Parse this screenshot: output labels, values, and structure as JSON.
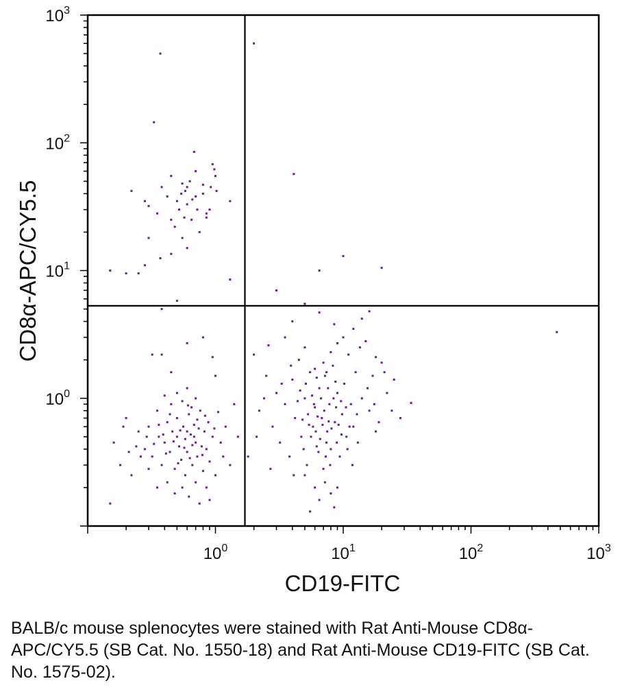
{
  "chart_data": {
    "type": "scatter",
    "scale": "log",
    "xlabel": "CD19-FITC",
    "ylabel": "CD8α-APC/CY5.5",
    "xlim": [
      0.1,
      1000
    ],
    "ylim": [
      0.1,
      1000
    ],
    "x_ticks": [
      {
        "base": "10",
        "exp": "0",
        "value": 1
      },
      {
        "base": "10",
        "exp": "1",
        "value": 10
      },
      {
        "base": "10",
        "exp": "2",
        "value": 100
      },
      {
        "base": "10",
        "exp": "3",
        "value": 1000
      }
    ],
    "y_ticks": [
      {
        "base": "10",
        "exp": "0",
        "value": 1
      },
      {
        "base": "10",
        "exp": "1",
        "value": 10
      },
      {
        "base": "10",
        "exp": "2",
        "value": 100
      },
      {
        "base": "10",
        "exp": "3",
        "value": 1000
      }
    ],
    "gate": {
      "x": 1.7,
      "y": 5.3
    },
    "point_color": "#6a1b8e",
    "points": [
      [
        0.37,
        500
      ],
      [
        0.33,
        145
      ],
      [
        0.22,
        42
      ],
      [
        0.45,
        55
      ],
      [
        0.55,
        48
      ],
      [
        0.6,
        45
      ],
      [
        0.7,
        60
      ],
      [
        0.68,
        85
      ],
      [
        0.95,
        68
      ],
      [
        0.98,
        62
      ],
      [
        1.0,
        55
      ],
      [
        1.3,
        35
      ],
      [
        0.9,
        30
      ],
      [
        0.8,
        40
      ],
      [
        0.5,
        35
      ],
      [
        0.42,
        38
      ],
      [
        0.3,
        32
      ],
      [
        0.28,
        35
      ],
      [
        0.35,
        28
      ],
      [
        0.48,
        22
      ],
      [
        0.55,
        18
      ],
      [
        0.65,
        25
      ],
      [
        0.75,
        20
      ],
      [
        0.85,
        28
      ],
      [
        0.6,
        33
      ],
      [
        0.7,
        38
      ],
      [
        0.58,
        42
      ],
      [
        0.63,
        50
      ],
      [
        0.52,
        30
      ],
      [
        0.8,
        47
      ],
      [
        0.45,
        25
      ],
      [
        0.38,
        45
      ],
      [
        0.3,
        18
      ],
      [
        0.28,
        11
      ],
      [
        0.25,
        9.5
      ],
      [
        0.37,
        12.5
      ],
      [
        0.45,
        13.5
      ],
      [
        0.2,
        9.5
      ],
      [
        0.15,
        10
      ],
      [
        0.6,
        15
      ],
      [
        1.3,
        8.5
      ],
      [
        0.85,
        26
      ],
      [
        0.72,
        30
      ],
      [
        0.66,
        36
      ],
      [
        0.57,
        26
      ],
      [
        0.54,
        40
      ],
      [
        0.92,
        45
      ],
      [
        1.02,
        42
      ],
      [
        2.0,
        600
      ],
      [
        4.1,
        57
      ],
      [
        10,
        13
      ],
      [
        6.5,
        10
      ],
      [
        20,
        10.5
      ],
      [
        3.0,
        7
      ],
      [
        470,
        3.3
      ],
      [
        5.0,
        5.5
      ],
      [
        0.5,
        5.8
      ],
      [
        0.38,
        5.0
      ],
      [
        0.38,
        2.2
      ],
      [
        0.32,
        2.2
      ],
      [
        0.45,
        1.6
      ],
      [
        0.6,
        2.7
      ],
      [
        0.8,
        3.0
      ],
      [
        0.95,
        2.1
      ],
      [
        1.0,
        1.5
      ],
      [
        0.2,
        0.7
      ],
      [
        0.16,
        0.45
      ],
      [
        0.18,
        0.3
      ],
      [
        0.22,
        0.25
      ],
      [
        0.15,
        0.15
      ],
      [
        0.25,
        0.55
      ],
      [
        0.28,
        0.4
      ],
      [
        0.3,
        0.6
      ],
      [
        0.32,
        0.35
      ],
      [
        0.35,
        0.8
      ],
      [
        0.36,
        0.5
      ],
      [
        0.38,
        0.3
      ],
      [
        0.4,
        0.45
      ],
      [
        0.42,
        0.65
      ],
      [
        0.44,
        0.38
      ],
      [
        0.46,
        0.55
      ],
      [
        0.48,
        0.28
      ],
      [
        0.5,
        0.7
      ],
      [
        0.52,
        0.42
      ],
      [
        0.54,
        0.33
      ],
      [
        0.56,
        0.6
      ],
      [
        0.58,
        0.48
      ],
      [
        0.6,
        0.38
      ],
      [
        0.62,
        0.75
      ],
      [
        0.64,
        0.52
      ],
      [
        0.66,
        0.3
      ],
      [
        0.68,
        0.62
      ],
      [
        0.7,
        0.45
      ],
      [
        0.72,
        0.35
      ],
      [
        0.74,
        0.58
      ],
      [
        0.76,
        0.8
      ],
      [
        0.78,
        0.42
      ],
      [
        0.8,
        0.27
      ],
      [
        0.82,
        0.55
      ],
      [
        0.85,
        0.4
      ],
      [
        0.88,
        0.65
      ],
      [
        0.9,
        0.32
      ],
      [
        0.95,
        0.5
      ],
      [
        1.0,
        0.25
      ],
      [
        1.1,
        0.45
      ],
      [
        1.2,
        0.6
      ],
      [
        1.3,
        0.3
      ],
      [
        1.4,
        0.9
      ],
      [
        1.5,
        0.5
      ],
      [
        0.45,
        0.9
      ],
      [
        0.5,
        1.1
      ],
      [
        0.55,
        0.95
      ],
      [
        0.6,
        1.2
      ],
      [
        0.65,
        0.85
      ],
      [
        0.7,
        1.0
      ],
      [
        0.4,
        1.05
      ],
      [
        0.35,
        0.2
      ],
      [
        0.42,
        0.22
      ],
      [
        0.48,
        0.18
      ],
      [
        0.55,
        0.2
      ],
      [
        0.62,
        0.17
      ],
      [
        0.7,
        0.22
      ],
      [
        0.75,
        0.15
      ],
      [
        0.85,
        0.2
      ],
      [
        0.9,
        0.16
      ],
      [
        0.3,
        0.28
      ],
      [
        0.26,
        0.35
      ],
      [
        0.58,
        0.25
      ],
      [
        0.66,
        0.43
      ],
      [
        0.5,
        0.5
      ],
      [
        0.53,
        0.56
      ],
      [
        0.47,
        0.46
      ],
      [
        0.6,
        0.55
      ],
      [
        0.63,
        0.34
      ],
      [
        0.72,
        0.68
      ],
      [
        0.36,
        0.62
      ],
      [
        0.41,
        0.37
      ],
      [
        0.57,
        0.41
      ],
      [
        0.51,
        0.31
      ],
      [
        0.68,
        0.5
      ],
      [
        0.79,
        0.36
      ],
      [
        0.44,
        0.75
      ],
      [
        0.61,
        0.88
      ],
      [
        0.39,
        0.52
      ],
      [
        0.83,
        0.73
      ],
      [
        1.05,
        0.78
      ],
      [
        1.15,
        0.35
      ],
      [
        0.98,
        0.58
      ],
      [
        0.33,
        0.44
      ],
      [
        0.29,
        0.5
      ],
      [
        0.24,
        0.42
      ],
      [
        0.21,
        0.38
      ],
      [
        0.19,
        0.6
      ],
      [
        2.0,
        2.2
      ],
      [
        2.5,
        1.5
      ],
      [
        2.2,
        0.8
      ],
      [
        2.8,
        0.6
      ],
      [
        3.0,
        1.1
      ],
      [
        3.2,
        0.45
      ],
      [
        3.5,
        0.9
      ],
      [
        3.8,
        0.35
      ],
      [
        4.0,
        1.4
      ],
      [
        4.2,
        0.7
      ],
      [
        4.5,
        2.0
      ],
      [
        4.7,
        0.5
      ],
      [
        5.0,
        1.0
      ],
      [
        5.2,
        0.3
      ],
      [
        5.5,
        1.6
      ],
      [
        5.8,
        0.6
      ],
      [
        6.0,
        0.85
      ],
      [
        6.2,
        0.42
      ],
      [
        6.5,
        1.2
      ],
      [
        6.8,
        0.7
      ],
      [
        7.0,
        0.28
      ],
      [
        7.2,
        1.5
      ],
      [
        7.5,
        0.55
      ],
      [
        7.8,
        0.9
      ],
      [
        8.0,
        0.4
      ],
      [
        8.3,
        1.8
      ],
      [
        8.6,
        0.65
      ],
      [
        9.0,
        1.1
      ],
      [
        9.4,
        0.35
      ],
      [
        9.8,
        0.75
      ],
      [
        10.2,
        1.3
      ],
      [
        10.6,
        0.5
      ],
      [
        11.0,
        2.2
      ],
      [
        11.5,
        0.9
      ],
      [
        12.0,
        0.6
      ],
      [
        12.5,
        1.6
      ],
      [
        13.0,
        0.45
      ],
      [
        14.0,
        1.0
      ],
      [
        15.0,
        2.8
      ],
      [
        16.0,
        0.8
      ],
      [
        17.0,
        1.5
      ],
      [
        18.0,
        0.55
      ],
      [
        20.0,
        1.9
      ],
      [
        22.0,
        1.1
      ],
      [
        25.0,
        1.4
      ],
      [
        28.0,
        0.7
      ],
      [
        34.0,
        0.92
      ],
      [
        18.0,
        2.1
      ],
      [
        5.0,
        0.25
      ],
      [
        6.0,
        0.2
      ],
      [
        6.5,
        0.16
      ],
      [
        7.2,
        0.22
      ],
      [
        8.0,
        0.18
      ],
      [
        8.5,
        0.14
      ],
      [
        9.0,
        0.2
      ],
      [
        5.5,
        0.13
      ],
      [
        6.1,
        0.55
      ],
      [
        6.3,
        0.72
      ],
      [
        6.6,
        0.48
      ],
      [
        6.9,
        0.62
      ],
      [
        7.1,
        0.8
      ],
      [
        7.4,
        0.45
      ],
      [
        7.7,
        0.66
      ],
      [
        5.9,
        0.9
      ],
      [
        5.6,
        0.5
      ],
      [
        5.3,
        0.75
      ],
      [
        6.4,
        0.38
      ],
      [
        7.3,
        0.35
      ],
      [
        8.1,
        0.58
      ],
      [
        8.8,
        0.85
      ],
      [
        9.2,
        0.62
      ],
      [
        4.8,
        0.68
      ],
      [
        4.4,
        0.95
      ],
      [
        4.6,
        1.15
      ],
      [
        5.1,
        1.3
      ],
      [
        5.7,
        1.05
      ],
      [
        6.7,
        1.0
      ],
      [
        7.6,
        1.2
      ],
      [
        8.4,
        1.0
      ],
      [
        9.6,
        0.95
      ],
      [
        10.5,
        0.85
      ],
      [
        11.2,
        0.6
      ],
      [
        6.0,
        1.7
      ],
      [
        7.0,
        1.9
      ],
      [
        8.0,
        2.3
      ],
      [
        5.0,
        2.5
      ],
      [
        9.0,
        2.7
      ],
      [
        10.0,
        3.0
      ],
      [
        12.0,
        3.5
      ],
      [
        14.0,
        4.2
      ],
      [
        16.0,
        4.8
      ],
      [
        4.0,
        4.0
      ],
      [
        6.5,
        4.7
      ],
      [
        8.5,
        3.8
      ],
      [
        3.5,
        3.0
      ],
      [
        2.6,
        2.6
      ],
      [
        13.5,
        2.5
      ],
      [
        15.5,
        1.2
      ],
      [
        17.5,
        0.9
      ],
      [
        19.0,
        0.65
      ],
      [
        21.0,
        1.6
      ],
      [
        24.0,
        0.8
      ],
      [
        3.9,
        1.8
      ],
      [
        3.3,
        1.3
      ],
      [
        2.4,
        1.0
      ],
      [
        2.1,
        0.5
      ],
      [
        1.8,
        0.35
      ],
      [
        2.7,
        0.28
      ],
      [
        4.1,
        0.25
      ],
      [
        4.9,
        0.4
      ],
      [
        5.4,
        0.62
      ],
      [
        7.9,
        0.3
      ],
      [
        8.9,
        0.45
      ],
      [
        9.7,
        0.52
      ],
      [
        10.8,
        0.4
      ],
      [
        11.8,
        0.3
      ],
      [
        12.8,
        0.75
      ],
      [
        6.2,
        1.45
      ],
      [
        7.4,
        1.6
      ],
      [
        8.7,
        1.35
      ]
    ]
  },
  "caption": "BALB/c mouse splenocytes were stained with Rat Anti-Mouse CD8α-APC/CY5.5 (SB Cat. No. 1550-18) and Rat Anti-Mouse CD19-FITC (SB Cat. No. 1575-02)."
}
